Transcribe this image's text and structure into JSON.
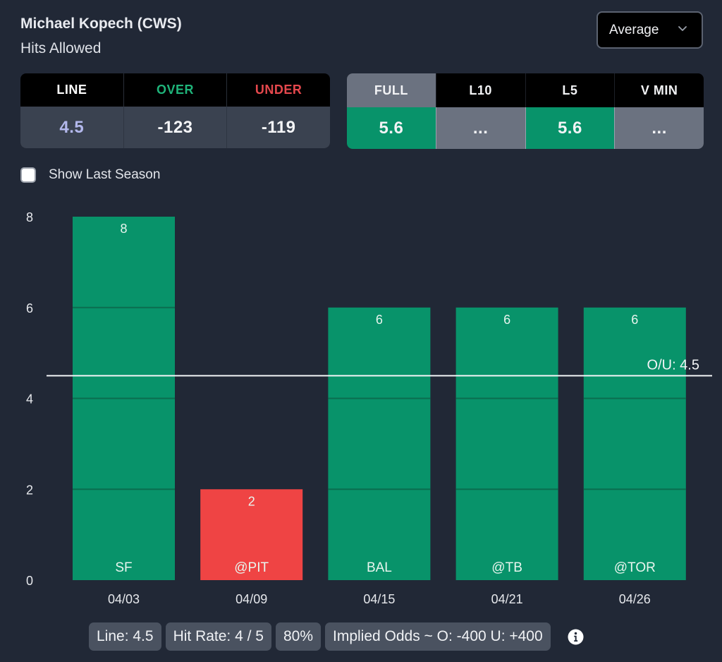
{
  "header": {
    "player": "Michael Kopech (CWS)",
    "stat": "Hits Allowed"
  },
  "dropdown": {
    "selected": "Average",
    "icon": "chevron-down-icon"
  },
  "odds_table": {
    "headers": [
      {
        "label": "LINE",
        "color": "#ffffff"
      },
      {
        "label": "OVER",
        "color": "#1fb47a"
      },
      {
        "label": "UNDER",
        "color": "#e5484d"
      }
    ],
    "values": [
      {
        "value": "4.5",
        "color": "#b3b8ec"
      },
      {
        "value": "-123",
        "color": "#f4f5f7"
      },
      {
        "value": "-119",
        "color": "#f4f5f7"
      }
    ]
  },
  "avg_table": {
    "columns": [
      {
        "label": "FULL",
        "value": "5.6",
        "active": true,
        "value_bg": "#08936a"
      },
      {
        "label": "L10",
        "value": "...",
        "active": false,
        "value_bg": "#6b7280"
      },
      {
        "label": "L5",
        "value": "5.6",
        "active": false,
        "value_bg": "#08936a"
      },
      {
        "label": "V MIN",
        "value": "...",
        "active": false,
        "value_bg": "#6b7280"
      }
    ],
    "active_header_bg": "#6b7280"
  },
  "show_last_season": {
    "label": "Show Last Season",
    "checked": false
  },
  "colors": {
    "over": "#08936a",
    "under": "#ef4444",
    "background": "#212836",
    "gridline_in_bar": "#0b6d4f"
  },
  "chart_data": {
    "type": "bar",
    "title": "Hits Allowed",
    "xlabel": "",
    "ylabel": "",
    "categories": [
      "04/03",
      "04/09",
      "04/15",
      "04/21",
      "04/26"
    ],
    "opponents": [
      "SF",
      "@PIT",
      "BAL",
      "@TB",
      "@TOR"
    ],
    "values": [
      8,
      2,
      6,
      6,
      6
    ],
    "value_labels": [
      "8",
      "2",
      "6",
      "6",
      "6"
    ],
    "result": [
      "over",
      "under",
      "over",
      "over",
      "over"
    ],
    "yticks": [
      0,
      2,
      4,
      6,
      8
    ],
    "ylim": [
      0,
      8
    ],
    "reference_line": {
      "value": 4.5,
      "label": "O/U: 4.5"
    },
    "grid": true,
    "legend": "none"
  },
  "summary": {
    "pills": [
      "Line: 4.5",
      "Hit Rate: 4 / 5",
      "80%",
      "Implied Odds ~ O: -400 U: +400"
    ],
    "info_icon": "info-icon"
  }
}
